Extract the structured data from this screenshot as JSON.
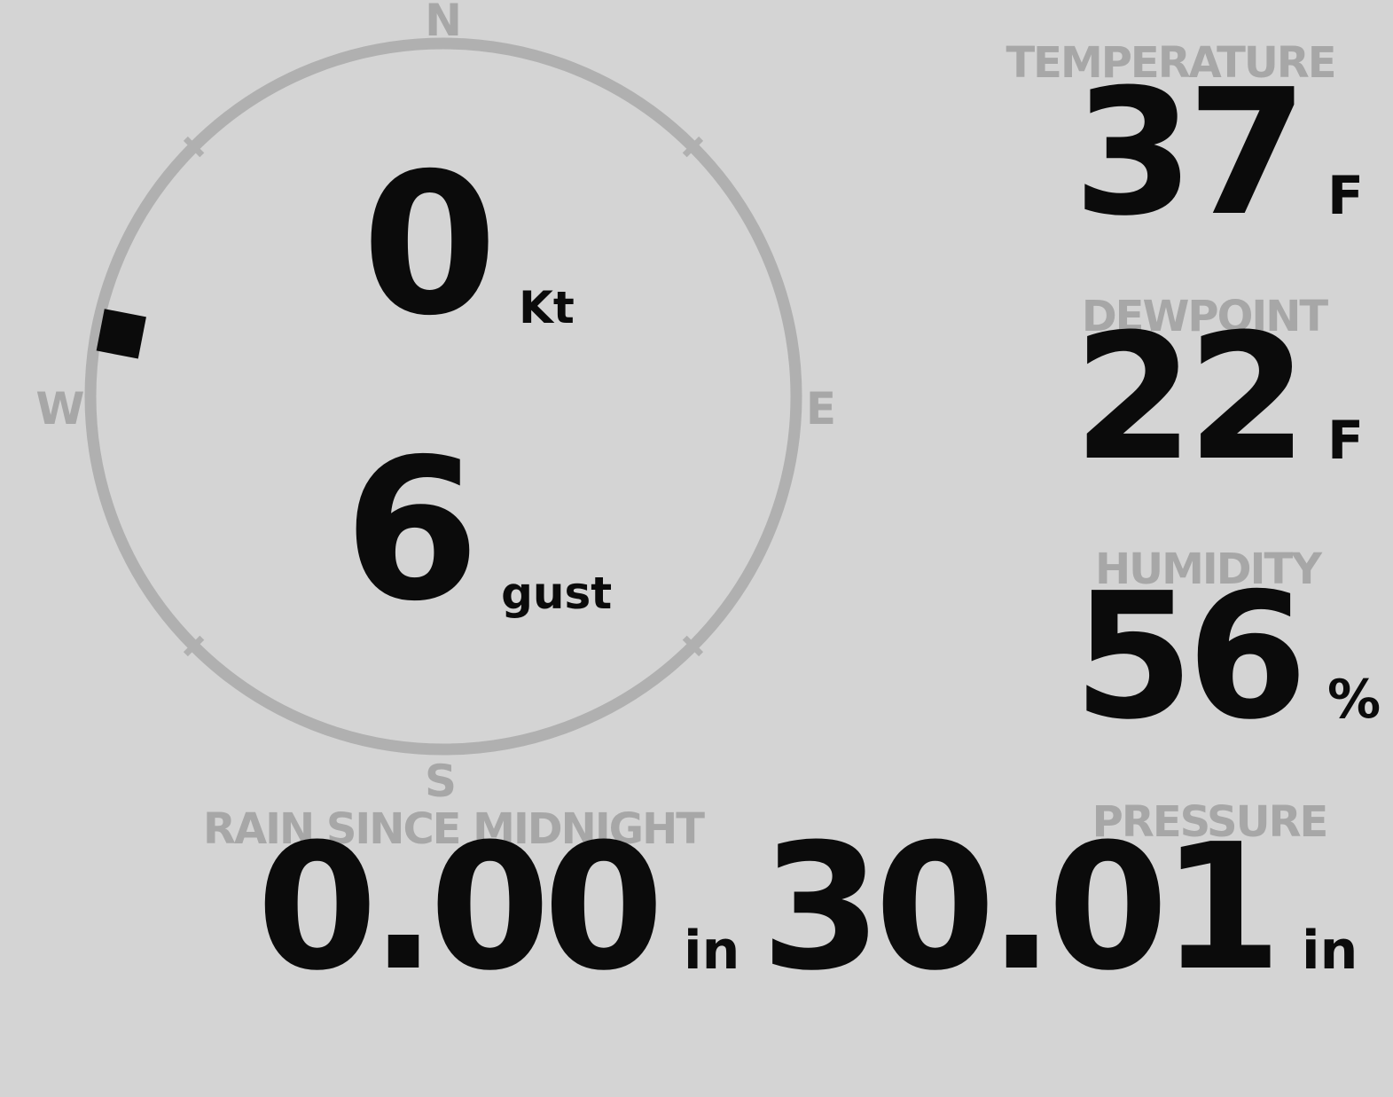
{
  "colors": {
    "bg": "#d4d4d4",
    "label": "#a7a7a7",
    "ring": "#b0b0b0",
    "value": "#0b0b0b",
    "marker": "#0b0b0b"
  },
  "compass": {
    "cardinals": {
      "north": "N",
      "east": "E",
      "south": "S",
      "west": "W"
    },
    "wind_speed": {
      "value": "0",
      "unit": "Kt"
    },
    "wind_gust": {
      "value": "6",
      "unit": "gust"
    },
    "wind_direction_deg": 281
  },
  "readings": {
    "temperature": {
      "label": "TEMPERATURE",
      "value": "37",
      "unit": "F"
    },
    "dewpoint": {
      "label": "DEWPOINT",
      "value": "22",
      "unit": "F"
    },
    "humidity": {
      "label": "HUMIDITY",
      "value": "56",
      "unit": "%"
    },
    "rain": {
      "label": "RAIN SINCE MIDNIGHT",
      "value": "0.00",
      "unit": "in"
    },
    "pressure": {
      "label": "PRESSURE",
      "value": "30.01",
      "unit": "in"
    }
  }
}
